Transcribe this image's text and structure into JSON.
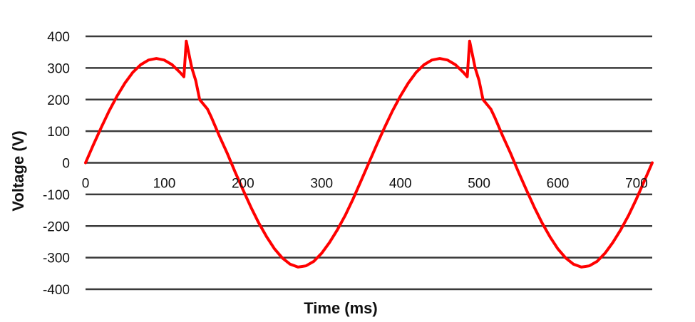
{
  "chart_data": {
    "type": "line",
    "xlabel": "Time (ms)",
    "ylabel": "Voltage (V)",
    "xlim": [
      0,
      720
    ],
    "ylim": [
      -400,
      400
    ],
    "x_ticks": [
      0,
      100,
      200,
      300,
      400,
      500,
      600,
      700
    ],
    "y_ticks": [
      400,
      300,
      200,
      100,
      0,
      -100,
      -200,
      -300,
      -400
    ],
    "grid": "horizontal",
    "legend": "none",
    "series": [
      {
        "color": "#ff0000",
        "points": [
          [
            0,
            0
          ],
          [
            10,
            57
          ],
          [
            20,
            112
          ],
          [
            30,
            164
          ],
          [
            40,
            211
          ],
          [
            50,
            252
          ],
          [
            60,
            286
          ],
          [
            70,
            310
          ],
          [
            80,
            325
          ],
          [
            90,
            330
          ],
          [
            100,
            325
          ],
          [
            110,
            310
          ],
          [
            120,
            286
          ],
          [
            125,
            272
          ],
          [
            128,
            385
          ],
          [
            135,
            300
          ],
          [
            140,
            260
          ],
          [
            145,
            200
          ],
          [
            155,
            170
          ],
          [
            160,
            143
          ],
          [
            170,
            85
          ],
          [
            180,
            30
          ],
          [
            190,
            -29
          ],
          [
            200,
            -85
          ],
          [
            210,
            -140
          ],
          [
            220,
            -190
          ],
          [
            230,
            -234
          ],
          [
            240,
            -272
          ],
          [
            250,
            -301
          ],
          [
            260,
            -321
          ],
          [
            270,
            -330
          ],
          [
            280,
            -326
          ],
          [
            290,
            -312
          ],
          [
            300,
            -286
          ],
          [
            310,
            -252
          ],
          [
            320,
            -212
          ],
          [
            330,
            -166
          ],
          [
            340,
            -114
          ],
          [
            350,
            -57
          ],
          [
            360,
            0
          ],
          [
            370,
            57
          ],
          [
            380,
            112
          ],
          [
            390,
            164
          ],
          [
            400,
            211
          ],
          [
            410,
            252
          ],
          [
            420,
            286
          ],
          [
            430,
            310
          ],
          [
            440,
            325
          ],
          [
            450,
            330
          ],
          [
            460,
            325
          ],
          [
            470,
            310
          ],
          [
            480,
            286
          ],
          [
            485,
            272
          ],
          [
            488,
            385
          ],
          [
            495,
            300
          ],
          [
            500,
            260
          ],
          [
            505,
            200
          ],
          [
            515,
            170
          ],
          [
            520,
            143
          ],
          [
            530,
            85
          ],
          [
            540,
            30
          ],
          [
            550,
            -29
          ],
          [
            560,
            -85
          ],
          [
            570,
            -140
          ],
          [
            580,
            -190
          ],
          [
            590,
            -234
          ],
          [
            600,
            -272
          ],
          [
            610,
            -301
          ],
          [
            620,
            -321
          ],
          [
            630,
            -330
          ],
          [
            640,
            -326
          ],
          [
            650,
            -312
          ],
          [
            660,
            -286
          ],
          [
            670,
            -252
          ],
          [
            680,
            -212
          ],
          [
            690,
            -166
          ],
          [
            700,
            -114
          ],
          [
            710,
            -57
          ],
          [
            720,
            0
          ]
        ]
      }
    ]
  }
}
